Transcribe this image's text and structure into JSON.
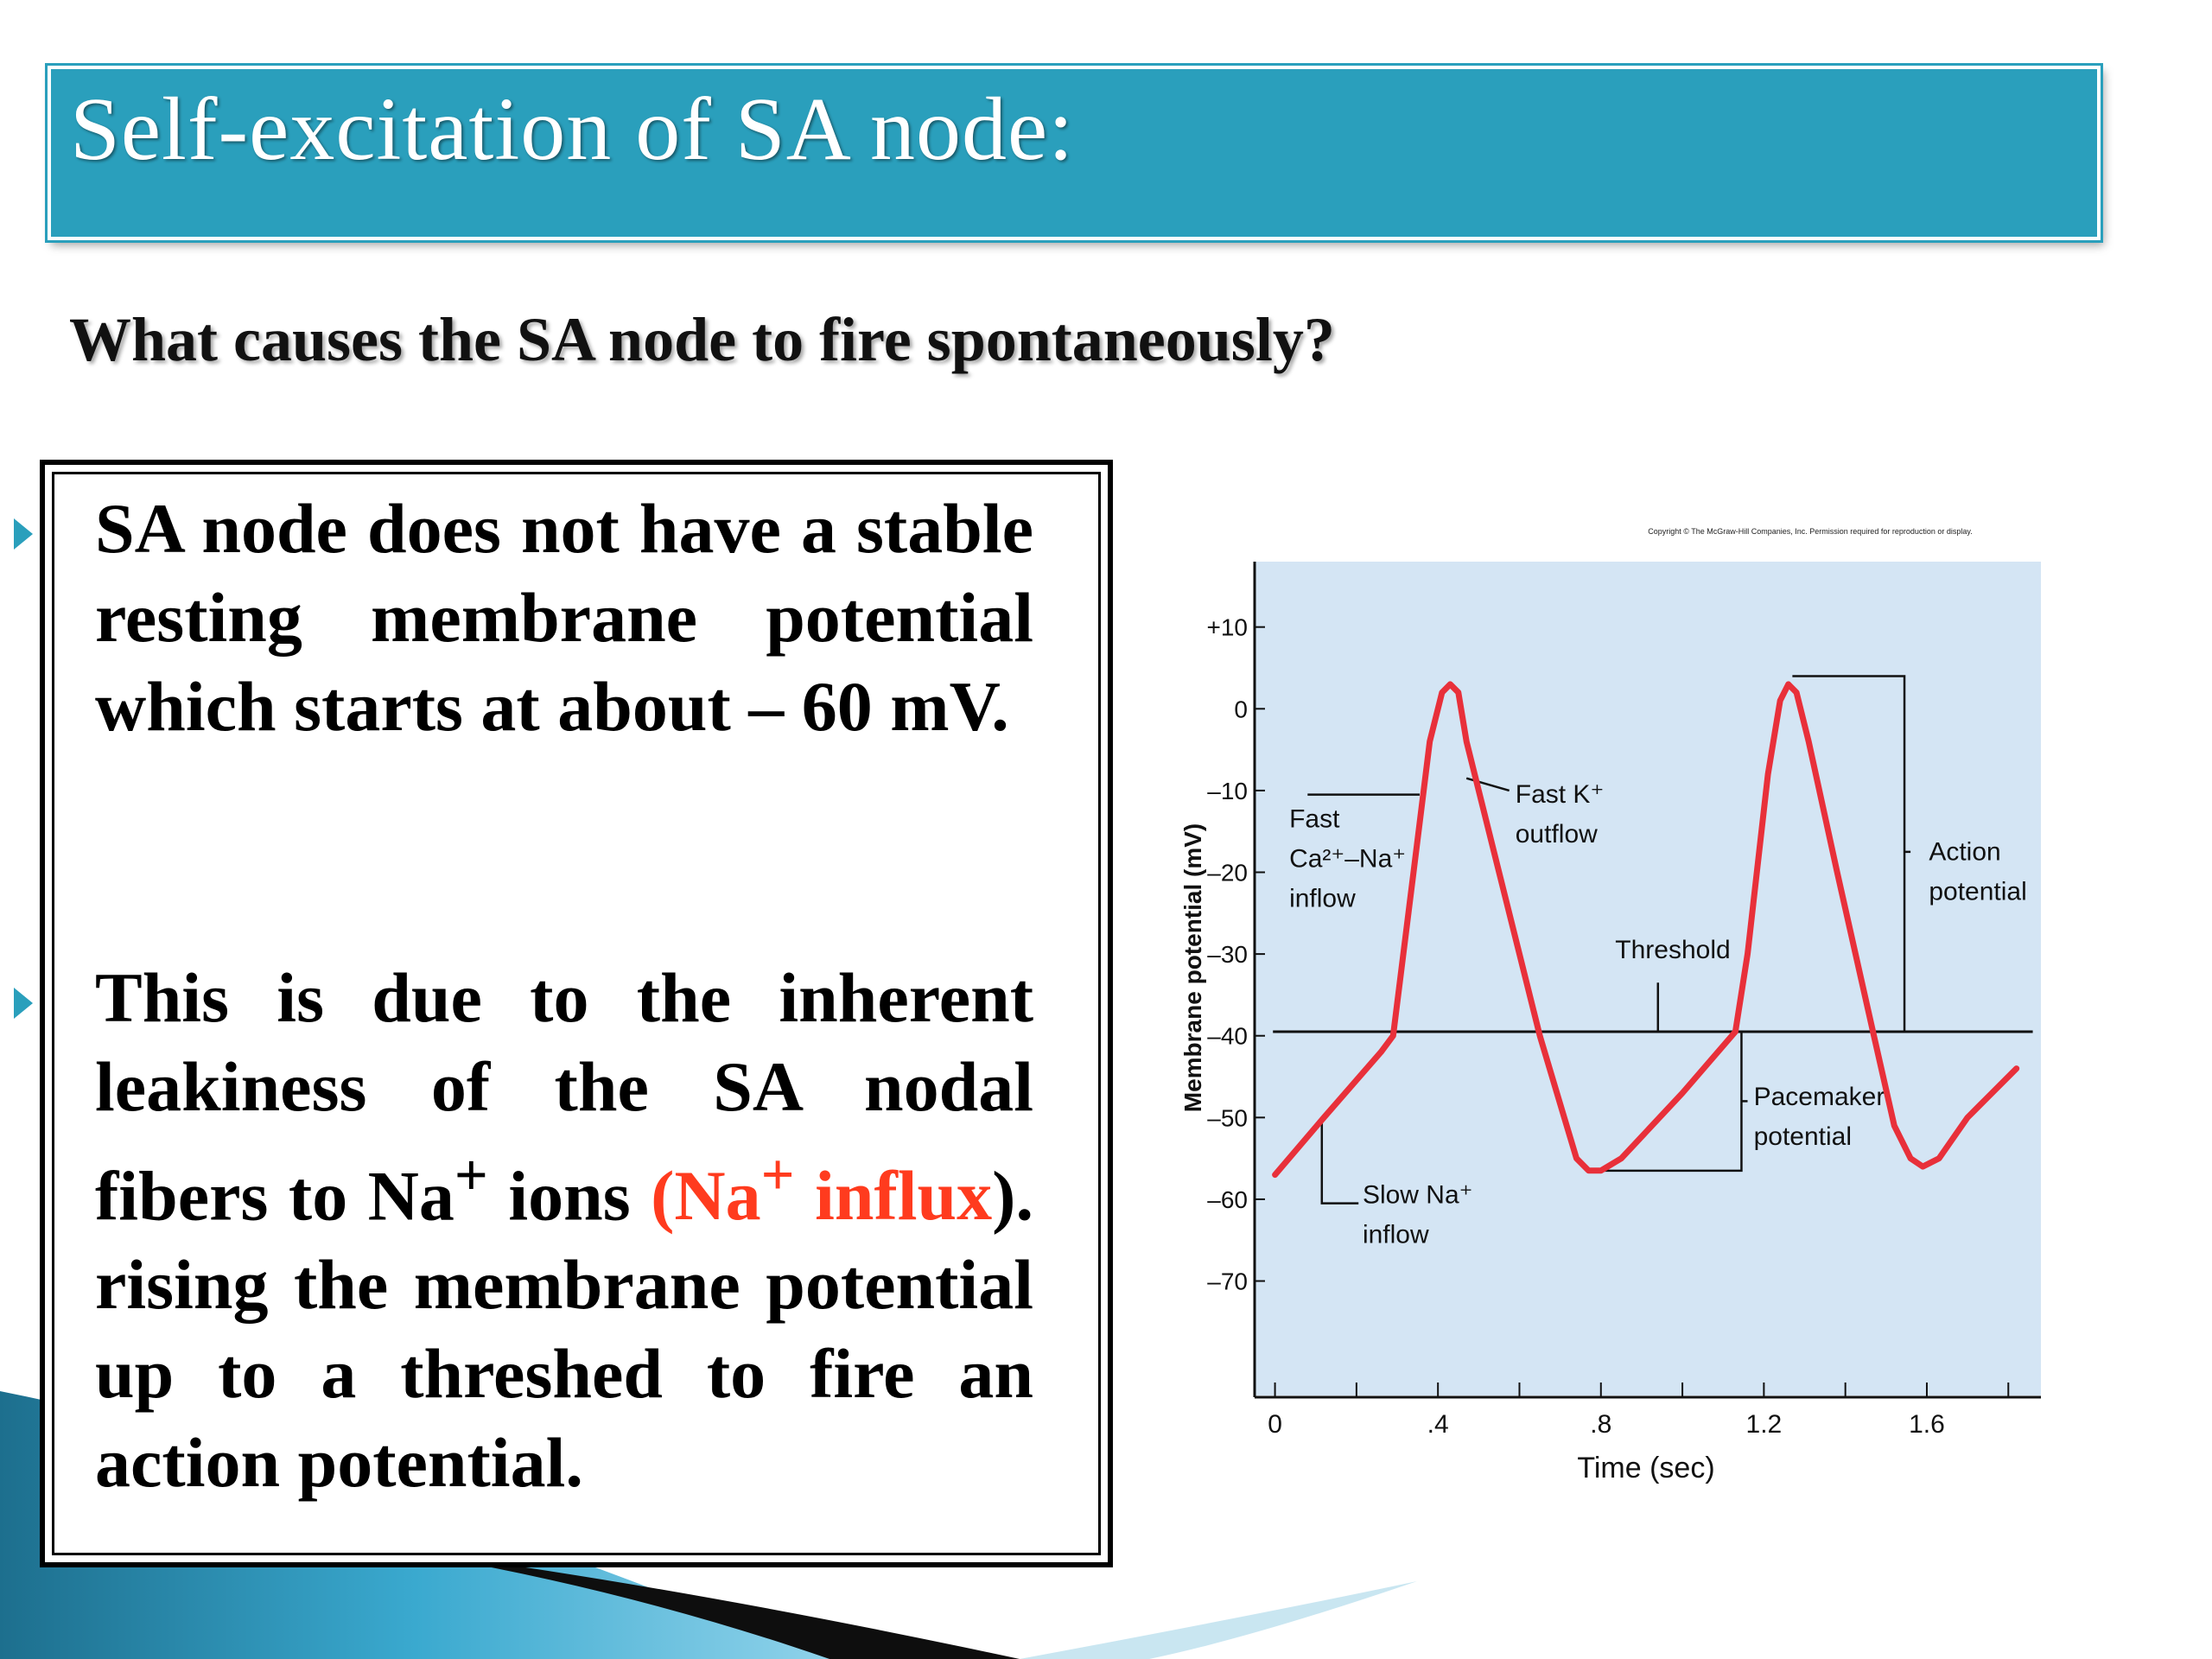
{
  "slide": {
    "title": "Self-excitation of SA node:",
    "question": "What causes the SA node to fire spontaneously?"
  },
  "bullets": [
    {
      "text": "SA node does not have a stable resting membrane potential which starts at about – 60 mV."
    },
    {
      "text_before": "This is due to the inherent leakiness of the SA nodal fibers to Na",
      "text_sup": "+",
      "text_mid": " ions ",
      "highlight_open": "(Na",
      "highlight_sup": "+",
      "highlight_word": " influx",
      "text_after": "). rising the membrane potential up to a threshed to fire an action potential."
    }
  ],
  "colors": {
    "title_band": "#2a9fbc",
    "bullet_marker": "#2a9fbc",
    "highlight": "#ff3b1e",
    "chart_background": "#d4e5f4",
    "curve": "#e8303a"
  },
  "chart_data": {
    "type": "line",
    "copyright": "Copyright © The McGraw-Hill Companies, Inc. Permission required for reproduction or display.",
    "xlabel": "Time (sec)",
    "ylabel": "Membrane potential (mV)",
    "xlim": [
      -0.05,
      1.88
    ],
    "ylim": [
      -84,
      18
    ],
    "x_ticks": [
      0,
      0.2,
      0.4,
      0.6,
      0.8,
      1.0,
      1.2,
      1.4,
      1.6,
      1.8
    ],
    "x_tick_labels": [
      "0",
      ".4",
      ".8",
      "1.2",
      "1.6"
    ],
    "x_tick_label_values": [
      0,
      0.4,
      0.8,
      1.2,
      1.6
    ],
    "y_ticks": [
      10,
      0,
      -10,
      -20,
      -30,
      -40,
      -50,
      -60,
      -70
    ],
    "y_tick_labels": [
      "+10",
      "0",
      "–10",
      "–20",
      "–30",
      "–40",
      "–50",
      "–60",
      "–70"
    ],
    "threshold": -39.5,
    "series": [
      {
        "points": [
          [
            0.0,
            -57
          ],
          [
            0.12,
            -50
          ],
          [
            0.26,
            -42
          ],
          [
            0.29,
            -40
          ],
          [
            0.34,
            -20
          ],
          [
            0.38,
            -4
          ],
          [
            0.41,
            2
          ],
          [
            0.43,
            3
          ],
          [
            0.45,
            2
          ],
          [
            0.47,
            -4
          ],
          [
            0.55,
            -20
          ],
          [
            0.65,
            -40
          ],
          [
            0.71,
            -50
          ],
          [
            0.74,
            -55
          ],
          [
            0.77,
            -56.5
          ],
          [
            0.8,
            -56.5
          ],
          [
            0.85,
            -55
          ],
          [
            1.0,
            -47
          ],
          [
            1.13,
            -39.5
          ],
          [
            1.16,
            -30
          ],
          [
            1.21,
            -8
          ],
          [
            1.24,
            1
          ],
          [
            1.26,
            3
          ],
          [
            1.28,
            2
          ],
          [
            1.31,
            -4
          ],
          [
            1.38,
            -20
          ],
          [
            1.47,
            -40
          ],
          [
            1.52,
            -51
          ],
          [
            1.56,
            -55
          ],
          [
            1.59,
            -56
          ],
          [
            1.63,
            -55
          ],
          [
            1.7,
            -50
          ],
          [
            1.82,
            -44
          ]
        ]
      }
    ],
    "annotations": [
      {
        "label_lines": [
          "Fast",
          "Ca²⁺–Na⁺",
          "inflow"
        ]
      },
      {
        "label_lines": [
          "Fast K⁺",
          "outflow"
        ]
      },
      {
        "label_lines": [
          "Threshold"
        ]
      },
      {
        "label_lines": [
          "Action",
          "potential"
        ]
      },
      {
        "label_lines": [
          "Pacemaker",
          "potential"
        ]
      },
      {
        "label_lines": [
          "Slow Na⁺",
          "inflow"
        ]
      }
    ]
  }
}
